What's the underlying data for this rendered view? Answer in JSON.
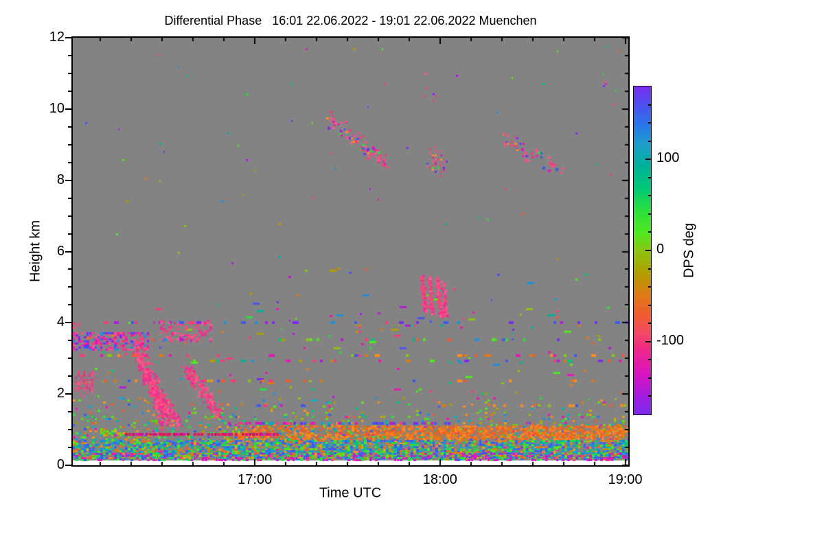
{
  "page": {
    "background": "#FFFFFF"
  },
  "chart_data": {
    "type": "heatmap",
    "title": "Differential Phase   16:01 22.06.2022 - 19:01 22.06.2022 Muenchen",
    "xlabel": "Time UTC",
    "ylabel": "Height km",
    "x_start_minute": 961,
    "x_end_minute": 1141,
    "x_major_ticks": [
      {
        "minute": 1020,
        "label": "17:00"
      },
      {
        "minute": 1080,
        "label": "18:00"
      },
      {
        "minute": 1140,
        "label": "19:00"
      }
    ],
    "x_minor_step_min": 10,
    "ylim": [
      0,
      12
    ],
    "y_major_ticks": [
      {
        "km": 0,
        "label": "0"
      },
      {
        "km": 2,
        "label": "2"
      },
      {
        "km": 4,
        "label": "4"
      },
      {
        "km": 6,
        "label": "6"
      },
      {
        "km": 8,
        "label": "8"
      },
      {
        "km": 10,
        "label": "10"
      },
      {
        "km": 12,
        "label": "12"
      }
    ],
    "y_minor_step_km": 0.5,
    "background_color": "#838383",
    "no_data_strip_color": "#FFFFFF",
    "axis_color": "#000000",
    "seed": 1337,
    "colorbar": {
      "label": "DPS deg",
      "vmin": -180,
      "vmax": 180,
      "major_ticks": [
        {
          "value": 100,
          "label": "100"
        },
        {
          "value": 0,
          "label": "0"
        },
        {
          "value": -100,
          "label": "-100"
        }
      ],
      "minor_step": 20,
      "gradient_stops": [
        [
          0.0,
          "#7B2BEE"
        ],
        [
          0.06,
          "#4B52F0"
        ],
        [
          0.12,
          "#2878E8"
        ],
        [
          0.18,
          "#1E9FC8"
        ],
        [
          0.24,
          "#00B09B"
        ],
        [
          0.31,
          "#00C878"
        ],
        [
          0.38,
          "#2BE03C"
        ],
        [
          0.45,
          "#52E81E"
        ],
        [
          0.5,
          "#8CC411"
        ],
        [
          0.57,
          "#B09E00"
        ],
        [
          0.64,
          "#E07818"
        ],
        [
          0.7,
          "#F05A32"
        ],
        [
          0.75,
          "#F54A64"
        ],
        [
          0.8,
          "#F02887"
        ],
        [
          0.88,
          "#D714C3"
        ],
        [
          0.95,
          "#9C1EE0"
        ],
        [
          1.0,
          "#7B2BEE"
        ]
      ]
    },
    "palettes": {
      "rainbow": [
        "#7B2BEE",
        "#4B52F0",
        "#1E8FD8",
        "#00B09B",
        "#00C878",
        "#2BE03C",
        "#52E81E",
        "#8CC411",
        "#B09E00",
        "#E07818",
        "#F05A32",
        "#F03C82",
        "#E518B4",
        "#B517DD"
      ],
      "low": [
        "#2BE03C",
        "#52E81E",
        "#8CC411",
        "#00C878",
        "#E07818",
        "#F0A014",
        "#3C5AF0",
        "#1E8FD8",
        "#00B0C8",
        "#F05A32",
        "#E518B4",
        "#B09E00",
        "#64DC14",
        "#FF8C1E"
      ],
      "orange": [
        "#F07818",
        "#FF8C1E",
        "#E8641E",
        "#FF7832",
        "#E07818",
        "#F05A32"
      ],
      "blue_green": [
        "#3C5AF0",
        "#2878E8",
        "#1E8FD8",
        "#4B52F0",
        "#00AAC8",
        "#2BE03C",
        "#00C878",
        "#52E81E",
        "#E07818"
      ],
      "magenta_mix": [
        "#E518B4",
        "#C81ECB",
        "#D714C3",
        "#B517DD",
        "#F03C82",
        "#3C5AF0",
        "#2BE03C"
      ],
      "cool": [
        "#3C5AF0",
        "#7B2BEE",
        "#B517DD",
        "#F03C82",
        "#1E8FD8"
      ],
      "warm": [
        "#E07818",
        "#F05A32",
        "#F03C82",
        "#FF8C1E",
        "#8CC411",
        "#E518B4",
        "#3C5AF0"
      ],
      "mixed": [
        "#7B2BEE",
        "#4B52F0",
        "#1E8FD8",
        "#00B09B",
        "#00C878",
        "#2BE03C",
        "#52E81E",
        "#8CC411",
        "#B09E00",
        "#E07818",
        "#F05A32",
        "#F03C82",
        "#E518B4",
        "#B517DD"
      ],
      "magenta_blue": [
        "#E518B4",
        "#D714C3",
        "#3C5AF0",
        "#F03C82",
        "#7B2BEE",
        "#00AAC8"
      ],
      "dark_magenta": [
        "#D2148C",
        "#C81464",
        "#E0185A",
        "#E518B4"
      ],
      "pink": [
        "#F8508C",
        "#F03C82",
        "#FF5A8C",
        "#E82D96",
        "#F5467D",
        "#FF4678",
        "#E8348C"
      ],
      "pink_blue": [
        "#F03C82",
        "#F8508C",
        "#E82D96",
        "#3C5AF0",
        "#7B2BEE",
        "#1E8FD8",
        "#E518B4"
      ],
      "pink_multi": [
        "#F8508C",
        "#F03C82",
        "#E82D96",
        "#FF5A8C",
        "#F5467D",
        "#E518B4",
        "#7B2BEE",
        "#3C5AF0",
        "#FF8C1E",
        "#2BE03C",
        "#F03C82",
        "#F8508C"
      ]
    },
    "features": [
      {
        "type": "speckle",
        "x": [
          0,
          1
        ],
        "h": [
          0.16,
          12
        ],
        "density": 0.002,
        "palette": "rainbow",
        "cell": [
          3,
          3
        ]
      },
      {
        "type": "speckle",
        "x": [
          0,
          1
        ],
        "h": [
          2.0,
          4.45
        ],
        "density": 0.012,
        "palette": "rainbow",
        "cell": [
          4,
          3
        ],
        "dash": true
      },
      {
        "type": "speckle",
        "x": [
          0.3,
          1
        ],
        "h": [
          4.0,
          5.6
        ],
        "density": 0.005,
        "palette": "rainbow",
        "cell": [
          4,
          3
        ],
        "dash": true
      },
      {
        "type": "vgrad",
        "x": [
          0,
          1
        ],
        "h": [
          0.16,
          1.95
        ],
        "d_top": 0.03,
        "d_bot": 0.8,
        "palette": "low",
        "cell": [
          4,
          3
        ]
      },
      {
        "type": "speckle",
        "x": [
          0.3,
          1
        ],
        "h": [
          0.72,
          1.1
        ],
        "density": 0.55,
        "palette": "orange",
        "cell": [
          4,
          3
        ]
      },
      {
        "type": "speckle",
        "x": [
          0.55,
          1
        ],
        "h": [
          0.75,
          1.08
        ],
        "density": 0.35,
        "palette": "orange",
        "cell": [
          4,
          3
        ]
      },
      {
        "type": "speckle",
        "x": [
          0,
          1
        ],
        "h": [
          0.16,
          0.7
        ],
        "density": 0.45,
        "palette": "blue_green",
        "cell": [
          4,
          3
        ]
      },
      {
        "type": "speckle",
        "x": [
          0,
          1
        ],
        "h": [
          0.16,
          0.34
        ],
        "density": 0.35,
        "palette": "magenta_mix",
        "cell": [
          4,
          3
        ]
      },
      {
        "type": "row",
        "h": 4.0,
        "x": [
          0.05,
          1
        ],
        "density": 0.2,
        "palette": "cool",
        "th": 4
      },
      {
        "type": "row",
        "h": 3.52,
        "x": [
          0,
          1
        ],
        "density": 0.15,
        "palette": "mixed",
        "th": 4
      },
      {
        "type": "row",
        "h": 3.08,
        "x": [
          0,
          1
        ],
        "density": 0.25,
        "palette": "warm",
        "th": 4
      },
      {
        "type": "row",
        "h": 2.92,
        "x": [
          0.05,
          1
        ],
        "density": 0.18,
        "palette": "mixed",
        "th": 4
      },
      {
        "type": "row",
        "h": 2.35,
        "x": [
          0.05,
          1
        ],
        "density": 0.14,
        "palette": "warm",
        "th": 4
      },
      {
        "type": "row",
        "h": 1.66,
        "x": [
          0.3,
          1
        ],
        "density": 0.12,
        "palette": "warm",
        "th": 4
      },
      {
        "type": "row",
        "h": 1.17,
        "x": [
          0.28,
          0.68
        ],
        "density": 0.5,
        "palette": "magenta_blue",
        "th": 4
      },
      {
        "type": "row",
        "h": 0.85,
        "x": [
          0.095,
          0.37
        ],
        "density": 0.8,
        "palette": "dark_magenta",
        "th": 4
      },
      {
        "type": "speckle",
        "x": [
          0,
          0.135
        ],
        "h": [
          3.2,
          3.72
        ],
        "density": 0.55,
        "palette": "pink_blue",
        "cell": [
          4,
          3
        ]
      },
      {
        "type": "speckle",
        "x": [
          0,
          0.012
        ],
        "h": [
          3.85,
          4.05
        ],
        "density": 0.5,
        "palette": "pink",
        "cell": [
          4,
          3
        ]
      },
      {
        "type": "blob",
        "c": [
          0.02,
          2.33
        ],
        "rx": 0.026,
        "rh": 0.38,
        "density": 0.7,
        "palette": "pink"
      },
      {
        "type": "speckle",
        "x": [
          0.157,
          0.248
        ],
        "h": [
          3.5,
          4.08
        ],
        "density": 0.4,
        "palette": "pink",
        "cell": [
          4,
          3
        ]
      },
      {
        "type": "streak",
        "p0": [
          0.112,
          3.45
        ],
        "p1": [
          0.168,
          1.18
        ],
        "wx": 0.014,
        "wh": 0.22,
        "density": 3.0,
        "palette": "pink"
      },
      {
        "type": "streak",
        "p0": [
          0.128,
          2.6
        ],
        "p1": [
          0.19,
          1.18
        ],
        "wx": 0.013,
        "wh": 0.2,
        "density": 2.5,
        "palette": "pink"
      },
      {
        "type": "streak",
        "p0": [
          0.205,
          2.7
        ],
        "p1": [
          0.262,
          1.42
        ],
        "wx": 0.013,
        "wh": 0.2,
        "density": 2.5,
        "palette": "pink"
      },
      {
        "type": "streak",
        "p0": [
          0.458,
          9.78
        ],
        "p1": [
          0.565,
          8.45
        ],
        "wx": 0.012,
        "wh": 0.3,
        "density": 1.1,
        "palette": "pink_multi"
      },
      {
        "type": "blob",
        "c": [
          0.652,
          8.52
        ],
        "rx": 0.02,
        "rh": 0.48,
        "density": 0.5,
        "palette": "pink_multi"
      },
      {
        "type": "streak",
        "p0": [
          0.775,
          9.2
        ],
        "p1": [
          0.878,
          8.22
        ],
        "wx": 0.012,
        "wh": 0.28,
        "density": 0.7,
        "palette": "pink_multi"
      },
      {
        "type": "streak",
        "p0": [
          0.627,
          5.32
        ],
        "p1": [
          0.633,
          4.35
        ],
        "wx": 0.004,
        "wh": 0.1,
        "density": 2.0,
        "palette": "pink"
      },
      {
        "type": "streak",
        "p0": [
          0.641,
          5.3
        ],
        "p1": [
          0.646,
          4.3
        ],
        "wx": 0.003,
        "wh": 0.1,
        "density": 1.8,
        "palette": "pink"
      },
      {
        "type": "streak",
        "p0": [
          0.655,
          5.25
        ],
        "p1": [
          0.662,
          4.18
        ],
        "wx": 0.004,
        "wh": 0.1,
        "density": 2.0,
        "palette": "pink"
      },
      {
        "type": "streak",
        "p0": [
          0.666,
          5.1
        ],
        "p1": [
          0.671,
          4.2
        ],
        "wx": 0.003,
        "wh": 0.1,
        "density": 1.5,
        "palette": "pink"
      },
      {
        "type": "speckle",
        "x": [
          0.633,
          0.655
        ],
        "h": [
          10.2,
          11.0
        ],
        "density": 0.03,
        "palette": "pink_multi",
        "cell": [
          3,
          3
        ]
      },
      {
        "type": "speckle",
        "x": [
          0.944,
          0.978
        ],
        "h": [
          10.1,
          11.0
        ],
        "density": 0.03,
        "palette": "pink_multi",
        "cell": [
          3,
          3
        ]
      }
    ]
  }
}
